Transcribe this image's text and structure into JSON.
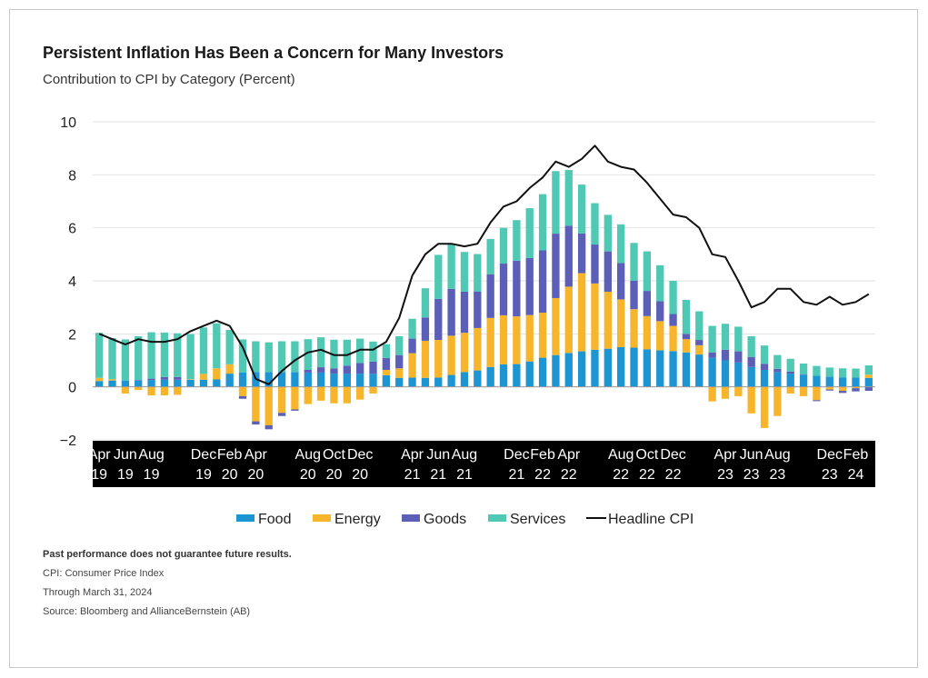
{
  "header": {
    "title": "Persistent Inflation Has Been a Concern for Many Investors",
    "subtitle": "Contribution to CPI by Category (Percent)"
  },
  "footnotes": {
    "disclaimer": "Past performance does not guarantee future results.",
    "cpi_def": "CPI: Consumer Price Index",
    "through": "Through March 31, 2024",
    "source": "Source: Bloomberg and AllianceBernstein (AB)"
  },
  "colors": {
    "food": "#1e95d3",
    "energy": "#f7b52c",
    "goods": "#5b5fb8",
    "services": "#4fc9b3",
    "cpi": "#111111",
    "axis_band": "#000000",
    "grid": "#e2e2e2"
  },
  "chart_data": {
    "type": "bar",
    "stacked": true,
    "title": "Persistent Inflation Has Been a Concern for Many Investors",
    "subtitle": "Contribution to CPI by Category (Percent)",
    "ylim": [
      -2,
      10
    ],
    "yticks": [
      10,
      8,
      6,
      4,
      2,
      0,
      -2
    ],
    "grid": true,
    "legend_position": "bottom",
    "x_tick_labels": [
      {
        "month": "Apr",
        "year": "19",
        "index": 0
      },
      {
        "month": "Jun",
        "year": "19",
        "index": 2
      },
      {
        "month": "Aug",
        "year": "19",
        "index": 4
      },
      {
        "month": "Dec",
        "year": "19",
        "index": 8
      },
      {
        "month": "Feb",
        "year": "20",
        "index": 10
      },
      {
        "month": "Apr",
        "year": "20",
        "index": 12
      },
      {
        "month": "Aug",
        "year": "20",
        "index": 16
      },
      {
        "month": "Oct",
        "year": "20",
        "index": 18
      },
      {
        "month": "Dec",
        "year": "20",
        "index": 20
      },
      {
        "month": "Apr",
        "year": "21",
        "index": 24
      },
      {
        "month": "Jun",
        "year": "21",
        "index": 26
      },
      {
        "month": "Aug",
        "year": "21",
        "index": 28
      },
      {
        "month": "Dec",
        "year": "21",
        "index": 32
      },
      {
        "month": "Feb",
        "year": "22",
        "index": 34
      },
      {
        "month": "Apr",
        "year": "22",
        "index": 36
      },
      {
        "month": "Aug",
        "year": "22",
        "index": 40
      },
      {
        "month": "Oct",
        "year": "22",
        "index": 42
      },
      {
        "month": "Dec",
        "year": "22",
        "index": 44
      },
      {
        "month": "Apr",
        "year": "23",
        "index": 48
      },
      {
        "month": "Jun",
        "year": "23",
        "index": 50
      },
      {
        "month": "Aug",
        "year": "23",
        "index": 52
      },
      {
        "month": "Dec",
        "year": "23",
        "index": 56
      },
      {
        "month": "Feb",
        "year": "24",
        "index": 58
      }
    ],
    "months": [
      "Apr 19",
      "May 19",
      "Jun 19",
      "Jul 19",
      "Aug 19",
      "Sep 19",
      "Oct 19",
      "Nov 19",
      "Dec 19",
      "Jan 20",
      "Feb 20",
      "Mar 20",
      "Apr 20",
      "May 20",
      "Jun 20",
      "Jul 20",
      "Aug 20",
      "Sep 20",
      "Oct 20",
      "Nov 20",
      "Dec 20",
      "Jan 21",
      "Feb 21",
      "Mar 21",
      "Apr 21",
      "May 21",
      "Jun 21",
      "Jul 21",
      "Aug 21",
      "Sep 21",
      "Oct 21",
      "Nov 21",
      "Dec 21",
      "Jan 22",
      "Feb 22",
      "Mar 22",
      "Apr 22",
      "May 22",
      "Jun 22",
      "Jul 22",
      "Aug 22",
      "Sep 22",
      "Oct 22",
      "Nov 22",
      "Dec 22",
      "Jan 23",
      "Feb 23",
      "Mar 23",
      "Apr 23",
      "May 23",
      "Jun 23",
      "Jul 23",
      "Aug 23",
      "Sep 23",
      "Oct 23",
      "Nov 23",
      "Dec 23",
      "Jan 24",
      "Feb 24",
      "Mar 24"
    ],
    "series": [
      {
        "name": "Food",
        "key": "food",
        "values": [
          0.22,
          0.24,
          0.24,
          0.24,
          0.26,
          0.27,
          0.27,
          0.27,
          0.27,
          0.28,
          0.5,
          0.54,
          0.56,
          0.56,
          0.56,
          0.56,
          0.54,
          0.54,
          0.5,
          0.5,
          0.5,
          0.5,
          0.44,
          0.34,
          0.35,
          0.34,
          0.35,
          0.45,
          0.56,
          0.62,
          0.75,
          0.85,
          0.86,
          0.96,
          1.1,
          1.2,
          1.28,
          1.34,
          1.4,
          1.44,
          1.5,
          1.48,
          1.42,
          1.38,
          1.35,
          1.3,
          1.22,
          1.1,
          1.0,
          0.92,
          0.75,
          0.64,
          0.56,
          0.5,
          0.46,
          0.42,
          0.38,
          0.36,
          0.35,
          0.34
        ]
      },
      {
        "name": "Energy",
        "key": "energy",
        "values": [
          0.12,
          0.05,
          -0.25,
          -0.12,
          -0.32,
          -0.32,
          -0.3,
          0.02,
          0.22,
          0.42,
          0.35,
          -0.35,
          -1.3,
          -1.45,
          -0.98,
          -0.85,
          -0.65,
          -0.52,
          -0.62,
          -0.62,
          -0.48,
          -0.25,
          0.2,
          0.36,
          0.92,
          1.4,
          1.42,
          1.48,
          1.48,
          1.6,
          1.85,
          1.85,
          1.8,
          1.75,
          1.7,
          2.15,
          2.5,
          2.95,
          2.5,
          2.15,
          1.8,
          1.45,
          1.25,
          1.1,
          0.95,
          0.5,
          0.35,
          -0.55,
          -0.45,
          -0.35,
          -1.0,
          -1.55,
          -1.1,
          -0.25,
          -0.35,
          -0.5,
          -0.1,
          -0.15,
          -0.05,
          0.12
        ]
      },
      {
        "name": "Goods",
        "key": "goods",
        "values": [
          0.0,
          0.0,
          0.0,
          0.02,
          0.05,
          0.1,
          0.1,
          0.0,
          0.0,
          0.0,
          0.0,
          -0.1,
          -0.12,
          -0.15,
          -0.12,
          -0.05,
          0.1,
          0.2,
          0.2,
          0.3,
          0.4,
          0.45,
          0.45,
          0.5,
          0.55,
          0.88,
          1.55,
          1.77,
          1.55,
          1.38,
          1.65,
          1.95,
          2.1,
          2.15,
          2.35,
          2.43,
          2.3,
          1.5,
          1.47,
          1.52,
          1.37,
          1.08,
          0.95,
          0.75,
          0.45,
          0.2,
          0.2,
          0.2,
          0.4,
          0.42,
          0.38,
          0.23,
          0.12,
          0.08,
          0.02,
          -0.04,
          -0.04,
          -0.08,
          -0.12,
          -0.15
        ]
      },
      {
        "name": "Services",
        "key": "services",
        "values": [
          1.7,
          1.55,
          1.55,
          1.65,
          1.75,
          1.68,
          1.65,
          1.7,
          1.75,
          1.7,
          1.3,
          1.25,
          1.16,
          1.12,
          1.16,
          1.16,
          1.16,
          1.13,
          1.08,
          0.98,
          0.92,
          0.76,
          0.52,
          0.71,
          0.75,
          1.1,
          1.66,
          1.7,
          1.5,
          1.41,
          1.33,
          1.35,
          1.53,
          1.88,
          2.12,
          2.36,
          2.1,
          1.84,
          1.56,
          1.38,
          1.46,
          1.42,
          1.49,
          1.36,
          1.25,
          1.28,
          1.08,
          1.0,
          0.98,
          0.93,
          0.78,
          0.69,
          0.52,
          0.48,
          0.4,
          0.37,
          0.35,
          0.34,
          0.34,
          0.35
        ]
      }
    ],
    "line": {
      "name": "Headline CPI",
      "key": "cpi",
      "values": [
        2.0,
        1.8,
        1.6,
        1.8,
        1.7,
        1.7,
        1.8,
        2.1,
        2.3,
        2.5,
        2.3,
        1.5,
        0.3,
        0.1,
        0.6,
        1.0,
        1.3,
        1.4,
        1.2,
        1.2,
        1.4,
        1.4,
        1.7,
        2.6,
        4.2,
        5.0,
        5.4,
        5.4,
        5.3,
        5.4,
        6.2,
        6.8,
        7.0,
        7.5,
        7.9,
        8.5,
        8.3,
        8.6,
        9.1,
        8.5,
        8.3,
        8.2,
        7.7,
        7.1,
        6.5,
        6.4,
        6.0,
        5.0,
        4.9,
        4.0,
        3.0,
        3.2,
        3.7,
        3.7,
        3.2,
        3.1,
        3.4,
        3.1,
        3.2,
        3.5
      ]
    }
  }
}
